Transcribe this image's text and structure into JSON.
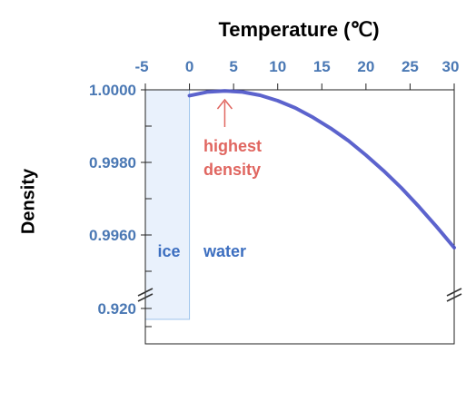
{
  "chart_data": {
    "type": "line",
    "title": "Temperature (℃)",
    "xlabel": "",
    "ylabel": "Density",
    "x_axis_position": "top",
    "xlim": [
      -5,
      30
    ],
    "x_ticks": [
      "-5",
      "0",
      "5",
      "10",
      "15",
      "20",
      "25",
      "30"
    ],
    "x_tick_values": [
      -5,
      0,
      5,
      10,
      15,
      20,
      25,
      30
    ],
    "y_axis": "broken",
    "y_ticks": [
      "1.0000",
      "0.9980",
      "0.9960",
      "0.920"
    ],
    "y_tick_values": [
      1.0,
      0.998,
      0.996,
      0.92
    ],
    "grid": false,
    "series": [
      {
        "name": "",
        "x": [
          0,
          2,
          4,
          6,
          8,
          10,
          12,
          14,
          16,
          18,
          20,
          22,
          24,
          26,
          28,
          30
        ],
        "y": [
          0.99984,
          0.99994,
          0.99997,
          0.99994,
          0.99985,
          0.9997,
          0.9995,
          0.99924,
          0.99894,
          0.9986,
          0.9982,
          0.99777,
          0.9973,
          0.99678,
          0.99623,
          0.99565
        ],
        "color": "#4a52c8"
      }
    ],
    "ice": {
      "label": "ice",
      "x_range": [
        -5,
        0
      ],
      "density": 0.917,
      "fill": "#e9f1fc",
      "stroke": "#9ec4ec",
      "label_color": "#3d6fc0"
    },
    "water_label": {
      "text": "water",
      "color": "#3d6fc0"
    },
    "annotation": {
      "line1": "highest",
      "line2": "density",
      "x": 4,
      "color": "#e06660"
    },
    "tick_label_color": "#4a78b4",
    "axis_color": "#222222"
  }
}
